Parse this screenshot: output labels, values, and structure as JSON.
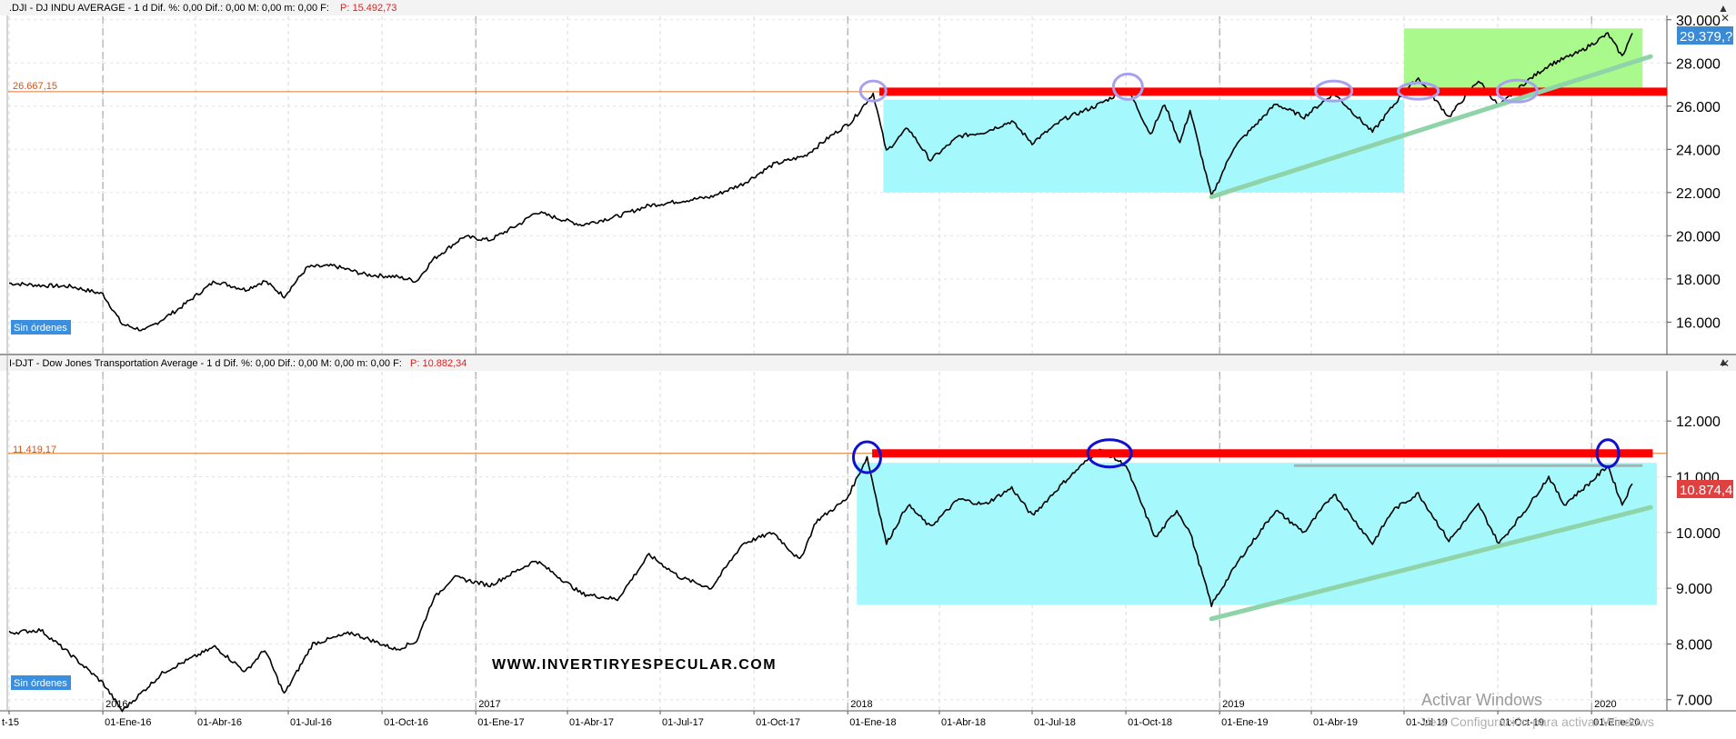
{
  "panels": [
    {
      "id": "dji",
      "header": ".DJI - DJ INDU AVERAGE -  1 d  Dif. %: 0,00  Dif.: 0,00  M: 0,00  m: 0,00  F:",
      "header_value": "P: 15.492,73",
      "resistance_label": "26.667,15",
      "last_price": "29.379,??",
      "badge": "Sin órdenes"
    },
    {
      "id": "djt",
      "header": "I-DJT - Dow Jones Transportation Average -  1 d  Dif. %: 0,00  Dif.: 0,00  M: 0,00  m: 0,00  F:",
      "header_value": "P: 10.882,34",
      "resistance_label": "11.419,17",
      "last_price": "10.874,4",
      "badge": "Sin órdenes"
    }
  ],
  "watermark": "WWW.INVERTIRYESPECULAR.COM",
  "activation": {
    "title": "Activar Windows",
    "subtitle": "Ve a Configuración para activar Windows"
  },
  "colors": {
    "resistance": "#ff0000",
    "range_box": "#a5f8fb",
    "breakout_box": "#a9f98c",
    "trendline": "#8fd4a8",
    "level_line": "#e0782a",
    "badge": "#3a8fe0",
    "price_tag_dji": "#3b8ad6",
    "price_tag_djt": "#e04040"
  },
  "chart_data": [
    {
      "type": "line",
      "title": ".DJI - DJ INDU AVERAGE",
      "y_ticks": [
        16000,
        18000,
        20000,
        22000,
        24000,
        26000,
        28000,
        30000
      ],
      "y_tick_labels": [
        "16.000",
        "18.000",
        "20.000",
        "22.000",
        "24.000",
        "26.000",
        "28.000",
        "30.000"
      ],
      "ylim": [
        14500,
        30200
      ],
      "resistance": 26667.15,
      "last": 29379,
      "series": [
        {
          "values": [
            [
              "2015-10-01",
              17800
            ],
            [
              "2015-11-01",
              17700
            ],
            [
              "2015-12-01",
              17650
            ],
            [
              "2016-01-01",
              17300
            ],
            [
              "2016-01-20",
              15900
            ],
            [
              "2016-02-11",
              15600
            ],
            [
              "2016-03-15",
              16600
            ],
            [
              "2016-04-20",
              17900
            ],
            [
              "2016-05-20",
              17500
            ],
            [
              "2016-06-08",
              17900
            ],
            [
              "2016-06-27",
              17200
            ],
            [
              "2016-07-20",
              18550
            ],
            [
              "2016-08-15",
              18600
            ],
            [
              "2016-09-15",
              18200
            ],
            [
              "2016-10-15",
              18100
            ],
            [
              "2016-11-04",
              17900
            ],
            [
              "2016-11-20",
              18900
            ],
            [
              "2016-12-20",
              19950
            ],
            [
              "2017-01-15",
              19800
            ],
            [
              "2017-02-15",
              20600
            ],
            [
              "2017-03-01",
              21100
            ],
            [
              "2017-04-15",
              20500
            ],
            [
              "2017-05-20",
              20900
            ],
            [
              "2017-06-20",
              21400
            ],
            [
              "2017-07-20",
              21600
            ],
            [
              "2017-08-20",
              21800
            ],
            [
              "2017-09-20",
              22400
            ],
            [
              "2017-10-20",
              23300
            ],
            [
              "2017-11-20",
              23700
            ],
            [
              "2017-12-15",
              24600
            ],
            [
              "2018-01-05",
              25300
            ],
            [
              "2018-01-26",
              26600
            ],
            [
              "2018-02-08",
              23900
            ],
            [
              "2018-03-01",
              25000
            ],
            [
              "2018-03-23",
              23500
            ],
            [
              "2018-04-20",
              24600
            ],
            [
              "2018-05-15",
              24800
            ],
            [
              "2018-06-11",
              25300
            ],
            [
              "2018-07-01",
              24300
            ],
            [
              "2018-08-01",
              25400
            ],
            [
              "2018-09-01",
              26000
            ],
            [
              "2018-10-03",
              26800
            ],
            [
              "2018-10-25",
              24700
            ],
            [
              "2018-11-08",
              26100
            ],
            [
              "2018-11-23",
              24300
            ],
            [
              "2018-12-03",
              25800
            ],
            [
              "2018-12-24",
              21800
            ],
            [
              "2019-01-15",
              24100
            ],
            [
              "2019-02-25",
              26100
            ],
            [
              "2019-03-25",
              25500
            ],
            [
              "2019-04-23",
              26600
            ],
            [
              "2019-05-31",
              24800
            ],
            [
              "2019-06-30",
              26600
            ],
            [
              "2019-07-15",
              27300
            ],
            [
              "2019-08-14",
              25500
            ],
            [
              "2019-09-12",
              27200
            ],
            [
              "2019-10-02",
              26000
            ],
            [
              "2019-10-28",
              27100
            ],
            [
              "2019-11-20",
              27900
            ],
            [
              "2019-12-20",
              28500
            ],
            [
              "2020-01-17",
              29350
            ],
            [
              "2020-01-31",
              28300
            ],
            [
              "2020-02-10",
              29379
            ]
          ]
        }
      ]
    },
    {
      "type": "line",
      "title": "I-DJT - Dow Jones Transportation Average",
      "y_ticks": [
        7000,
        8000,
        9000,
        10000,
        11000,
        12000
      ],
      "y_tick_labels": [
        "7.000",
        "8.000",
        "9.000",
        "10.000",
        "11.000",
        "12.000"
      ],
      "ylim": [
        6800,
        12900
      ],
      "resistance": 11419.17,
      "last": 10874.4,
      "series": [
        {
          "values": [
            [
              "2015-10-01",
              8200
            ],
            [
              "2015-11-01",
              8250
            ],
            [
              "2015-12-01",
              7800
            ],
            [
              "2016-01-01",
              7300
            ],
            [
              "2016-01-20",
              6800
            ],
            [
              "2016-03-01",
              7500
            ],
            [
              "2016-04-20",
              7950
            ],
            [
              "2016-05-20",
              7500
            ],
            [
              "2016-06-08",
              7900
            ],
            [
              "2016-06-27",
              7100
            ],
            [
              "2016-07-25",
              8000
            ],
            [
              "2016-09-01",
              8200
            ],
            [
              "2016-10-15",
              7900
            ],
            [
              "2016-11-04",
              8050
            ],
            [
              "2016-11-20",
              8800
            ],
            [
              "2016-12-10",
              9200
            ],
            [
              "2017-01-15",
              9050
            ],
            [
              "2017-03-01",
              9500
            ],
            [
              "2017-04-15",
              8900
            ],
            [
              "2017-05-20",
              8800
            ],
            [
              "2017-06-20",
              9600
            ],
            [
              "2017-07-20",
              9200
            ],
            [
              "2017-08-20",
              9000
            ],
            [
              "2017-09-20",
              9800
            ],
            [
              "2017-10-20",
              10000
            ],
            [
              "2017-11-15",
              9500
            ],
            [
              "2017-12-01",
              10200
            ],
            [
              "2017-12-31",
              10600
            ],
            [
              "2018-01-20",
              11350
            ],
            [
              "2018-02-08",
              9800
            ],
            [
              "2018-03-01",
              10500
            ],
            [
              "2018-03-23",
              10100
            ],
            [
              "2018-04-20",
              10600
            ],
            [
              "2018-05-15",
              10500
            ],
            [
              "2018-06-11",
              10800
            ],
            [
              "2018-07-01",
              10300
            ],
            [
              "2018-08-01",
              10900
            ],
            [
              "2018-09-05",
              11500
            ],
            [
              "2018-10-01",
              11200
            ],
            [
              "2018-10-30",
              9900
            ],
            [
              "2018-11-20",
              10400
            ],
            [
              "2018-12-03",
              10000
            ],
            [
              "2018-12-24",
              8700
            ],
            [
              "2019-01-20",
              9500
            ],
            [
              "2019-02-25",
              10400
            ],
            [
              "2019-03-25",
              10000
            ],
            [
              "2019-04-23",
              10700
            ],
            [
              "2019-05-31",
              9800
            ],
            [
              "2019-06-20",
              10400
            ],
            [
              "2019-07-15",
              10700
            ],
            [
              "2019-08-14",
              9850
            ],
            [
              "2019-09-12",
              10500
            ],
            [
              "2019-10-02",
              9800
            ],
            [
              "2019-10-28",
              10400
            ],
            [
              "2019-11-20",
              11000
            ],
            [
              "2019-12-05",
              10500
            ],
            [
              "2019-12-31",
              10900
            ],
            [
              "2020-01-17",
              11200
            ],
            [
              "2020-01-31",
              10500
            ],
            [
              "2020-02-10",
              10874
            ]
          ]
        }
      ]
    }
  ],
  "x_axis": {
    "labels": [
      "t-15",
      "01-Ene-16",
      "01-Abr-16",
      "01-Jul-16",
      "01-Oct-16",
      "01-Ene-17",
      "01-Abr-17",
      "01-Jul-17",
      "01-Oct-17",
      "01-Ene-18",
      "01-Abr-18",
      "01-Jul-18",
      "01-Oct-18",
      "01-Ene-19",
      "01-Abr-19",
      "01-Jul-19",
      "01-Oct-19",
      "01-Ene-20"
    ],
    "label_dates": [
      "2015-10-01",
      "2016-01-01",
      "2016-04-01",
      "2016-07-01",
      "2016-10-01",
      "2017-01-01",
      "2017-04-01",
      "2017-07-01",
      "2017-10-01",
      "2018-01-01",
      "2018-04-01",
      "2018-07-01",
      "2018-10-01",
      "2019-01-01",
      "2019-04-01",
      "2019-07-01",
      "2019-10-01",
      "2020-01-01"
    ],
    "year_labels": [
      "2016",
      "2017",
      "2018",
      "2019",
      "2020"
    ],
    "year_dates": [
      "2016-01-01",
      "2017-01-01",
      "2018-01-01",
      "2019-01-01",
      "2020-01-01"
    ]
  }
}
